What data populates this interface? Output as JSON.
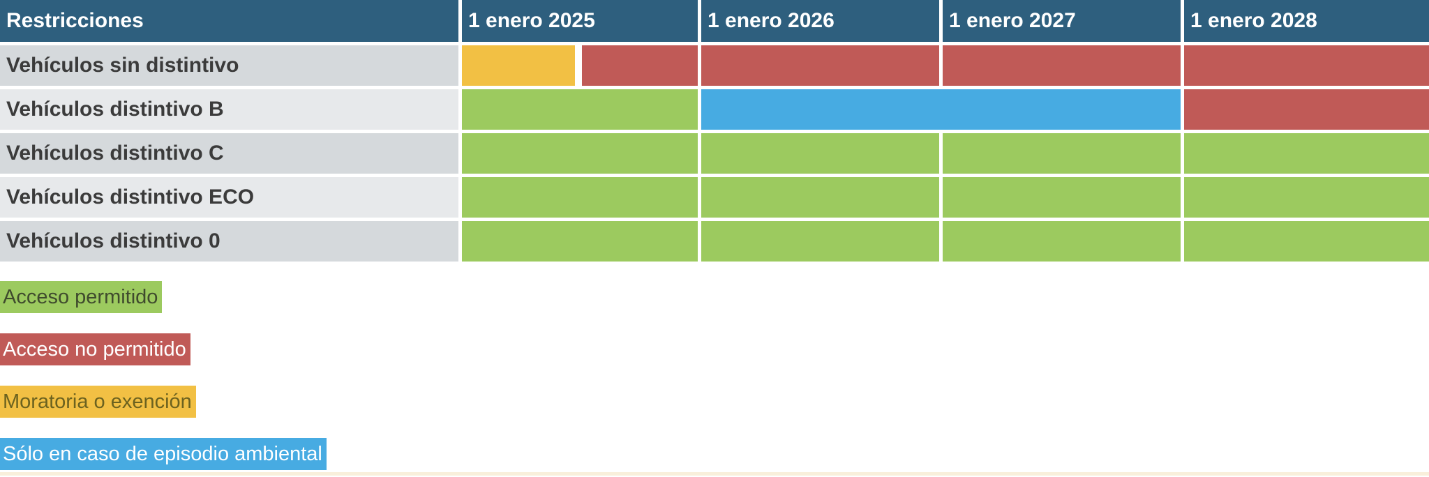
{
  "colors": {
    "header_bg": "#2e5f7e",
    "label_row_odd": "#d5d9dc",
    "label_row_even": "#e7e9eb",
    "acceso_permitido": "#9cca5f",
    "acceso_no_permitido": "#c05a57",
    "moratoria_o_exencion": "#f2c044",
    "solo_episodio_ambiental": "#47abe2",
    "bottom_rule": "#f9efdb"
  },
  "chart_data": {
    "type": "table",
    "title": "Restricciones",
    "header_row": [
      "Restricciones",
      "1 enero 2025",
      "1 enero 2026",
      "1 enero 2027",
      "1 enero 2028"
    ],
    "rows": [
      {
        "label": "Vehículos sin distintivo",
        "cells": [
          {
            "split": [
              "moratoria_o_exencion",
              "acceso_no_permitido"
            ]
          },
          {
            "status": "acceso_no_permitido"
          },
          {
            "status": "acceso_no_permitido"
          },
          {
            "status": "acceso_no_permitido"
          }
        ]
      },
      {
        "label": "Vehículos distintivo B",
        "cells": [
          {
            "status": "acceso_permitido"
          },
          {
            "status": "solo_episodio_ambiental",
            "span": 2
          },
          {
            "status": "acceso_no_permitido"
          }
        ]
      },
      {
        "label": "Vehículos distintivo C",
        "cells": [
          {
            "status": "acceso_permitido"
          },
          {
            "status": "acceso_permitido"
          },
          {
            "status": "acceso_permitido"
          },
          {
            "status": "acceso_permitido"
          }
        ]
      },
      {
        "label": "Vehículos distintivo ECO",
        "cells": [
          {
            "status": "acceso_permitido"
          },
          {
            "status": "acceso_permitido"
          },
          {
            "status": "acceso_permitido"
          },
          {
            "status": "acceso_permitido"
          }
        ]
      },
      {
        "label": "Vehículos distintivo 0",
        "cells": [
          {
            "status": "acceso_permitido"
          },
          {
            "status": "acceso_permitido"
          },
          {
            "status": "acceso_permitido"
          },
          {
            "status": "acceso_permitido"
          }
        ]
      }
    ],
    "legend": [
      {
        "label": "Acceso permitido",
        "status": "acceso_permitido",
        "text_color": "#3f4b2d"
      },
      {
        "label": "Acceso no permitido",
        "status": "acceso_no_permitido",
        "text_color": "#ffffff"
      },
      {
        "label": "Moratoria o exención",
        "status": "moratoria_o_exencion",
        "text_color": "#6c621f"
      },
      {
        "label": "Sólo en caso de episodio ambiental",
        "status": "solo_episodio_ambiental",
        "text_color": "#ffffff"
      }
    ]
  }
}
